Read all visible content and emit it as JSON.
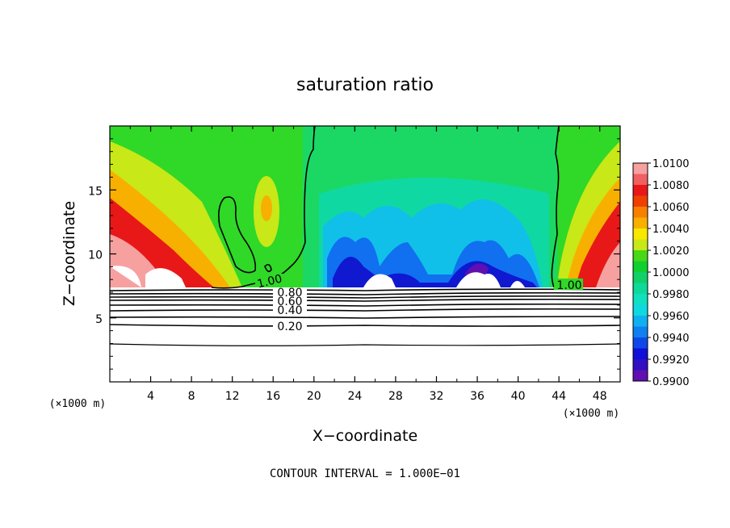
{
  "chart_data": {
    "type": "heatmap",
    "title": "saturation ratio",
    "xlabel": "X−coordinate",
    "ylabel": "Z−coordinate",
    "x_unit": "(×1000 m)",
    "footer": "CONTOUR INTERVAL = 1.000E−01",
    "xlim": [
      0,
      50
    ],
    "ylim": [
      0,
      20
    ],
    "x_ticks": [
      4,
      8,
      12,
      16,
      20,
      24,
      28,
      32,
      36,
      40,
      44,
      48
    ],
    "y_ticks": [
      5,
      10,
      15
    ],
    "colorbar": {
      "labels": [
        "1.0100",
        "1.0080",
        "1.0060",
        "1.0040",
        "1.0020",
        "1.0000",
        "0.9980",
        "0.9960",
        "0.9940",
        "0.9920",
        "0.9900"
      ],
      "colors": [
        "#f7a0a0",
        "#f06060",
        "#e81818",
        "#f04000",
        "#f88000",
        "#f8b000",
        "#f8e800",
        "#c8e818",
        "#48d818",
        "#10d030",
        "#10d068",
        "#10d898",
        "#10e0c0",
        "#10d8e0",
        "#10b0f0",
        "#1080f0",
        "#1048e8",
        "#1010d8",
        "#3010c0",
        "#6010b0"
      ]
    },
    "contour_labels": [
      "1.00",
      "1.00",
      "0.80",
      "0.60",
      "0.40",
      "0.20"
    ],
    "contour_levels": [
      1.0,
      0.9,
      0.8,
      0.7,
      0.6,
      0.5,
      0.4,
      0.3,
      0.2,
      0.1
    ]
  }
}
